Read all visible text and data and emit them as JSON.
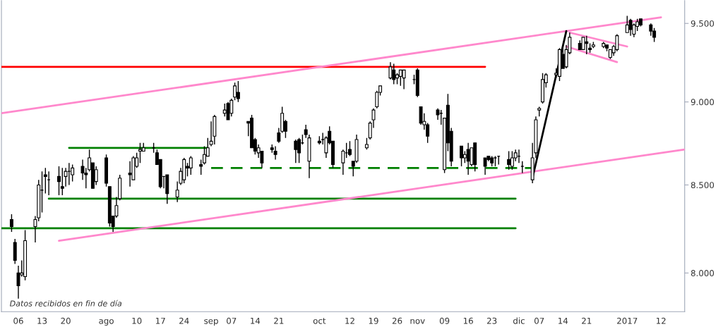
{
  "chart_data": {
    "type": "candlestick",
    "annotations": [
      "Datos recibidos en fin de día"
    ],
    "x": [
      "2016-07-04",
      "2016-07-05",
      "2016-07-06",
      "2016-07-07",
      "2016-07-08",
      "2016-07-11",
      "2016-07-12",
      "2016-07-13",
      "2016-07-14",
      "2016-07-15",
      "2016-07-18",
      "2016-07-19",
      "2016-07-20",
      "2016-07-21",
      "2016-07-22",
      "2016-07-25",
      "2016-07-26",
      "2016-07-27",
      "2016-07-28",
      "2016-07-29",
      "2016-08-01",
      "2016-08-02",
      "2016-08-03",
      "2016-08-04",
      "2016-08-05",
      "2016-08-08",
      "2016-08-09",
      "2016-08-10",
      "2016-08-11",
      "2016-08-12",
      "2016-08-15",
      "2016-08-16",
      "2016-08-17",
      "2016-08-18",
      "2016-08-19",
      "2016-08-22",
      "2016-08-23",
      "2016-08-24",
      "2016-08-25",
      "2016-08-26",
      "2016-08-29",
      "2016-08-30",
      "2016-08-31",
      "2016-09-01",
      "2016-09-02",
      "2016-09-05",
      "2016-09-06",
      "2016-09-07",
      "2016-09-08",
      "2016-09-09",
      "2016-09-12",
      "2016-09-13",
      "2016-09-14",
      "2016-09-15",
      "2016-09-16",
      "2016-09-19",
      "2016-09-20",
      "2016-09-21",
      "2016-09-22",
      "2016-09-23",
      "2016-09-26",
      "2016-09-27",
      "2016-09-28",
      "2016-09-29",
      "2016-09-30",
      "2016-10-03",
      "2016-10-04",
      "2016-10-05",
      "2016-10-06",
      "2016-10-07",
      "2016-10-10",
      "2016-10-11",
      "2016-10-12",
      "2016-10-13",
      "2016-10-14",
      "2016-10-17",
      "2016-10-18",
      "2016-10-19",
      "2016-10-20",
      "2016-10-21",
      "2016-10-24",
      "2016-10-25",
      "2016-10-26",
      "2016-10-27",
      "2016-10-28",
      "2016-10-31",
      "2016-11-01",
      "2016-11-02",
      "2016-11-03",
      "2016-11-04",
      "2016-11-07",
      "2016-11-08",
      "2016-11-09",
      "2016-11-10",
      "2016-11-11",
      "2016-11-14",
      "2016-11-15",
      "2016-11-16",
      "2016-11-17",
      "2016-11-18",
      "2016-11-21",
      "2016-11-22",
      "2016-11-23",
      "2016-11-24",
      "2016-11-25",
      "2016-11-28",
      "2016-11-29",
      "2016-11-30",
      "2016-12-01",
      "2016-12-02",
      "2016-12-05",
      "2016-12-06",
      "2016-12-07",
      "2016-12-08",
      "2016-12-09",
      "2016-12-12",
      "2016-12-13",
      "2016-12-14",
      "2016-12-15",
      "2016-12-16",
      "2016-12-19",
      "2016-12-20",
      "2016-12-21",
      "2016-12-22",
      "2016-12-23",
      "2016-12-26",
      "2016-12-27",
      "2016-12-28",
      "2016-12-29",
      "2016-12-30",
      "2017-01-02",
      "2017-01-03",
      "2017-01-04",
      "2017-01-05",
      "2017-01-06",
      "2017-01-09",
      "2017-01-10"
    ],
    "ohlc": [
      [
        8.3,
        8.33,
        8.23,
        8.26
      ],
      [
        8.17,
        8.19,
        8.05,
        8.07
      ],
      [
        8.0,
        8.04,
        7.86,
        7.93
      ],
      [
        7.99,
        8.07,
        7.98,
        8.0
      ],
      [
        7.98,
        8.24,
        7.96,
        8.18
      ],
      [
        8.26,
        8.32,
        8.17,
        8.3
      ],
      [
        8.31,
        8.53,
        8.29,
        8.5
      ],
      [
        8.47,
        8.58,
        8.34,
        8.47
      ],
      [
        8.56,
        8.6,
        8.45,
        8.55
      ],
      [
        8.53,
        8.58,
        8.44,
        8.53
      ],
      [
        8.55,
        8.61,
        8.44,
        8.52
      ],
      [
        8.49,
        8.6,
        8.44,
        8.48
      ],
      [
        8.55,
        8.6,
        8.49,
        8.58
      ],
      [
        8.58,
        8.63,
        8.5,
        8.58
      ],
      [
        8.56,
        8.62,
        8.52,
        8.6
      ],
      [
        8.61,
        8.65,
        8.53,
        8.57
      ],
      [
        8.57,
        8.6,
        8.48,
        8.56
      ],
      [
        8.59,
        8.71,
        8.58,
        8.66
      ],
      [
        8.63,
        8.63,
        8.48,
        8.48
      ],
      [
        8.52,
        8.61,
        8.5,
        8.59
      ],
      [
        8.66,
        8.68,
        8.49,
        8.51
      ],
      [
        8.49,
        8.49,
        8.26,
        8.28
      ],
      [
        8.32,
        8.32,
        8.23,
        8.26
      ],
      [
        8.32,
        8.43,
        8.31,
        8.38
      ],
      [
        8.42,
        8.56,
        8.41,
        8.54
      ],
      [
        8.57,
        8.64,
        8.49,
        8.56
      ],
      [
        8.53,
        8.67,
        8.53,
        8.66
      ],
      [
        8.61,
        8.69,
        8.6,
        8.66
      ],
      [
        8.7,
        8.75,
        8.63,
        8.71
      ],
      [
        8.7,
        8.75,
        8.7,
        8.72
      ],
      [
        8.72,
        8.75,
        8.69,
        8.72
      ],
      [
        8.69,
        8.71,
        8.62,
        8.62
      ],
      [
        8.65,
        8.65,
        8.48,
        8.49
      ],
      [
        8.55,
        8.55,
        8.48,
        8.55
      ],
      [
        8.56,
        8.56,
        8.39,
        8.45
      ],
      [
        8.43,
        8.52,
        8.4,
        8.47
      ],
      [
        8.51,
        8.6,
        8.5,
        8.58
      ],
      [
        8.53,
        8.66,
        8.51,
        8.65
      ],
      [
        8.61,
        8.63,
        8.55,
        8.6
      ],
      [
        8.6,
        8.67,
        8.56,
        8.66
      ],
      [
        8.62,
        8.65,
        8.56,
        8.61
      ],
      [
        8.63,
        8.73,
        8.62,
        8.68
      ],
      [
        8.67,
        8.78,
        8.67,
        8.72
      ],
      [
        8.74,
        8.88,
        8.73,
        8.76
      ],
      [
        8.79,
        8.92,
        8.74,
        8.91
      ],
      [
        8.93,
        8.99,
        8.91,
        8.95
      ],
      [
        8.99,
        9.0,
        8.89,
        8.89
      ],
      [
        8.93,
        9.02,
        8.91,
        9.01
      ],
      [
        9.03,
        9.12,
        9.01,
        9.1
      ],
      [
        9.06,
        9.13,
        9.0,
        9.02
      ],
      [
        8.88,
        8.88,
        8.79,
        8.87
      ],
      [
        8.9,
        8.92,
        8.72,
        8.72
      ],
      [
        8.77,
        8.78,
        8.68,
        8.7
      ],
      [
        8.69,
        8.74,
        8.66,
        8.72
      ],
      [
        8.7,
        8.7,
        8.6,
        8.63
      ],
      [
        8.72,
        8.74,
        8.69,
        8.71
      ],
      [
        8.7,
        8.73,
        8.65,
        8.68
      ],
      [
        8.81,
        8.84,
        8.75,
        8.76
      ],
      [
        8.82,
        8.97,
        8.81,
        8.93
      ],
      [
        8.88,
        8.89,
        8.78,
        8.82
      ],
      [
        8.76,
        8.77,
        8.63,
        8.71
      ],
      [
        8.77,
        8.78,
        8.63,
        8.69
      ],
      [
        8.75,
        8.8,
        8.74,
        8.75
      ],
      [
        8.83,
        8.86,
        8.78,
        8.8
      ],
      [
        8.64,
        8.8,
        8.54,
        8.78
      ],
      [
        8.76,
        8.79,
        8.74,
        8.75
      ],
      [
        8.77,
        8.81,
        8.74,
        8.77
      ],
      [
        8.69,
        8.79,
        8.66,
        8.78
      ],
      [
        8.82,
        8.85,
        8.74,
        8.75
      ],
      [
        8.76,
        8.76,
        8.6,
        8.62
      ],
      [
        8.63,
        8.71,
        8.56,
        8.7
      ],
      [
        8.69,
        8.75,
        8.66,
        8.69
      ],
      [
        8.71,
        8.76,
        8.67,
        8.68
      ],
      [
        8.64,
        8.64,
        8.55,
        8.61
      ],
      [
        8.64,
        8.8,
        8.63,
        8.77
      ],
      [
        8.72,
        8.78,
        8.71,
        8.74
      ],
      [
        8.78,
        8.88,
        8.77,
        8.87
      ],
      [
        8.89,
        8.96,
        8.84,
        8.95
      ],
      [
        8.97,
        9.07,
        8.96,
        9.06
      ],
      [
        9.06,
        9.1,
        9.04,
        9.1
      ],
      [
        9.15,
        9.25,
        9.14,
        9.22
      ],
      [
        9.2,
        9.24,
        9.11,
        9.14
      ],
      [
        9.15,
        9.18,
        9.11,
        9.17
      ],
      [
        9.16,
        9.2,
        9.1,
        9.2
      ],
      [
        9.15,
        9.2,
        9.08,
        9.2
      ],
      [
        9.14,
        9.17,
        9.11,
        9.14
      ],
      [
        9.2,
        9.21,
        9.03,
        9.04
      ],
      [
        8.97,
        8.97,
        8.86,
        8.87
      ],
      [
        8.86,
        8.93,
        8.83,
        8.88
      ],
      [
        8.86,
        8.87,
        8.75,
        8.79
      ],
      [
        8.95,
        8.96,
        8.89,
        8.92
      ],
      [
        8.93,
        8.95,
        8.86,
        8.93
      ],
      [
        8.59,
        8.9,
        8.57,
        8.9
      ],
      [
        8.98,
        9.05,
        8.7,
        8.75
      ],
      [
        8.82,
        8.84,
        8.61,
        8.64
      ],
      [
        8.73,
        8.73,
        8.61,
        8.66
      ],
      [
        8.66,
        8.7,
        8.63,
        8.68
      ],
      [
        8.71,
        8.75,
        8.56,
        8.64
      ],
      [
        8.62,
        8.72,
        8.61,
        8.72
      ],
      [
        8.75,
        8.75,
        8.58,
        8.62
      ],
      [
        8.66,
        8.66,
        8.56,
        8.61
      ],
      [
        8.67,
        8.67,
        8.64,
        8.65
      ],
      [
        8.66,
        8.67,
        8.61,
        8.63
      ],
      [
        8.66,
        8.67,
        8.61,
        8.66
      ],
      [
        8.67,
        8.67,
        8.62,
        8.67
      ],
      [
        8.65,
        8.7,
        8.59,
        8.62
      ],
      [
        8.61,
        8.7,
        8.59,
        8.66
      ],
      [
        8.66,
        8.71,
        8.64,
        8.69
      ],
      [
        8.67,
        8.71,
        8.63,
        8.67
      ],
      [
        8.61,
        8.64,
        8.57,
        8.61
      ],
      [
        8.53,
        8.75,
        8.51,
        8.66
      ],
      [
        8.69,
        8.91,
        8.66,
        8.89
      ],
      [
        8.95,
        8.97,
        8.91,
        8.96
      ],
      [
        9.0,
        9.18,
        8.99,
        9.14
      ],
      [
        9.12,
        9.18,
        9.09,
        9.17
      ],
      [
        9.17,
        9.21,
        9.15,
        9.18
      ],
      [
        9.16,
        9.34,
        9.13,
        9.33
      ],
      [
        9.3,
        9.34,
        9.21,
        9.21
      ],
      [
        9.22,
        9.36,
        9.21,
        9.33
      ],
      [
        9.31,
        9.44,
        9.3,
        9.41
      ],
      [
        9.37,
        9.39,
        9.33,
        9.33
      ],
      [
        9.33,
        9.41,
        9.33,
        9.41
      ],
      [
        9.38,
        9.42,
        9.3,
        9.37
      ],
      [
        9.34,
        9.37,
        9.31,
        9.33
      ],
      [
        9.35,
        9.38,
        9.34,
        9.36
      ],
      [
        9.35,
        9.38,
        9.34,
        9.37
      ],
      [
        9.36,
        9.36,
        9.32,
        9.34
      ],
      [
        9.28,
        9.33,
        9.27,
        9.33
      ],
      [
        9.31,
        9.36,
        9.29,
        9.35
      ],
      [
        9.33,
        9.43,
        9.32,
        9.42
      ],
      [
        9.44,
        9.55,
        9.44,
        9.49
      ],
      [
        9.52,
        9.53,
        9.42,
        9.46
      ],
      [
        9.43,
        9.5,
        9.41,
        9.49
      ],
      [
        9.48,
        9.53,
        9.45,
        9.51
      ],
      [
        9.53,
        9.53,
        9.48,
        9.49
      ],
      [
        9.49,
        9.5,
        9.42,
        9.45
      ],
      [
        9.45,
        9.47,
        9.38,
        9.41
      ]
    ],
    "series": [
      {
        "type": "line",
        "color": "#ff0000",
        "x": [
          "2016-07-01",
          "2016-11-21"
        ],
        "values": [
          9.22,
          9.22
        ]
      },
      {
        "type": "line",
        "color": "#008000",
        "x": [
          "2016-07-01",
          "2016-11-30"
        ],
        "values": [
          8.25,
          8.25
        ]
      },
      {
        "type": "line",
        "color": "#008000",
        "x": [
          "2016-07-15",
          "2016-11-30"
        ],
        "values": [
          8.42,
          8.42
        ]
      },
      {
        "type": "line",
        "color": "#008000",
        "x": [
          "2016-07-21",
          "2016-08-31"
        ],
        "values": [
          8.72,
          8.72
        ]
      },
      {
        "type": "line",
        "color": "#008000",
        "line_style": "dashed",
        "x": [
          "2016-09-01",
          "2016-12-05"
        ],
        "values": [
          8.6,
          8.6
        ]
      },
      {
        "type": "line",
        "color": "#ff88cc",
        "x": [
          "2016-07-01",
          "2017-01-12"
        ],
        "values": [
          8.93,
          9.54
        ]
      },
      {
        "type": "line",
        "color": "#ff88cc",
        "x": [
          "2016-07-18",
          "2017-01-19"
        ],
        "values": [
          8.18,
          8.71
        ]
      },
      {
        "type": "line",
        "color": "#000000",
        "x": [
          "2016-12-05",
          "2016-12-15"
        ],
        "values": [
          8.54,
          9.45
        ]
      },
      {
        "type": "line",
        "color": "#ff88cc",
        "x": [
          "2016-12-16",
          "2017-01-02"
        ],
        "values": [
          9.44,
          9.35
        ]
      },
      {
        "type": "line",
        "color": "#ff88cc",
        "x": [
          "2016-12-15",
          "2016-12-30"
        ],
        "values": [
          9.35,
          9.25
        ]
      }
    ],
    "log": "y",
    "xlim": [
      "2016-07-01",
      "2017-01-19"
    ],
    "xticks": [
      {
        "value": "2016-07-06",
        "label": "06"
      },
      {
        "value": "2016-07-13",
        "label": "13"
      },
      {
        "value": "2016-07-20",
        "label": "20"
      },
      {
        "value": "2016-08-01",
        "label": "ago"
      },
      {
        "value": "2016-08-10",
        "label": "10"
      },
      {
        "value": "2016-08-17",
        "label": "17"
      },
      {
        "value": "2016-08-24",
        "label": "24"
      },
      {
        "value": "2016-09-01",
        "label": "sep"
      },
      {
        "value": "2016-09-07",
        "label": "07"
      },
      {
        "value": "2016-09-14",
        "label": "14"
      },
      {
        "value": "2016-09-21",
        "label": "21"
      },
      {
        "value": "2016-10-03",
        "label": "oct"
      },
      {
        "value": "2016-10-12",
        "label": "12"
      },
      {
        "value": "2016-10-19",
        "label": "19"
      },
      {
        "value": "2016-10-26",
        "label": "26"
      },
      {
        "value": "2016-11-01",
        "label": "nov"
      },
      {
        "value": "2016-11-09",
        "label": "09"
      },
      {
        "value": "2016-11-16",
        "label": "16"
      },
      {
        "value": "2016-11-23",
        "label": "23"
      },
      {
        "value": "2016-12-01",
        "label": "dic"
      },
      {
        "value": "2016-12-07",
        "label": "07"
      },
      {
        "value": "2016-12-14",
        "label": "14"
      },
      {
        "value": "2016-12-21",
        "label": "21"
      },
      {
        "value": "2017-01-02",
        "label": "2017"
      },
      {
        "value": "2017-01-12",
        "label": "12"
      }
    ],
    "ylim": [
      7.79,
      9.65
    ],
    "yticks": [
      {
        "value": 8,
        "label": "8.000"
      },
      {
        "value": 8.5,
        "label": "8.500"
      },
      {
        "value": 9,
        "label": "9.000"
      },
      {
        "value": 9.5,
        "label": "9.500"
      }
    ]
  }
}
